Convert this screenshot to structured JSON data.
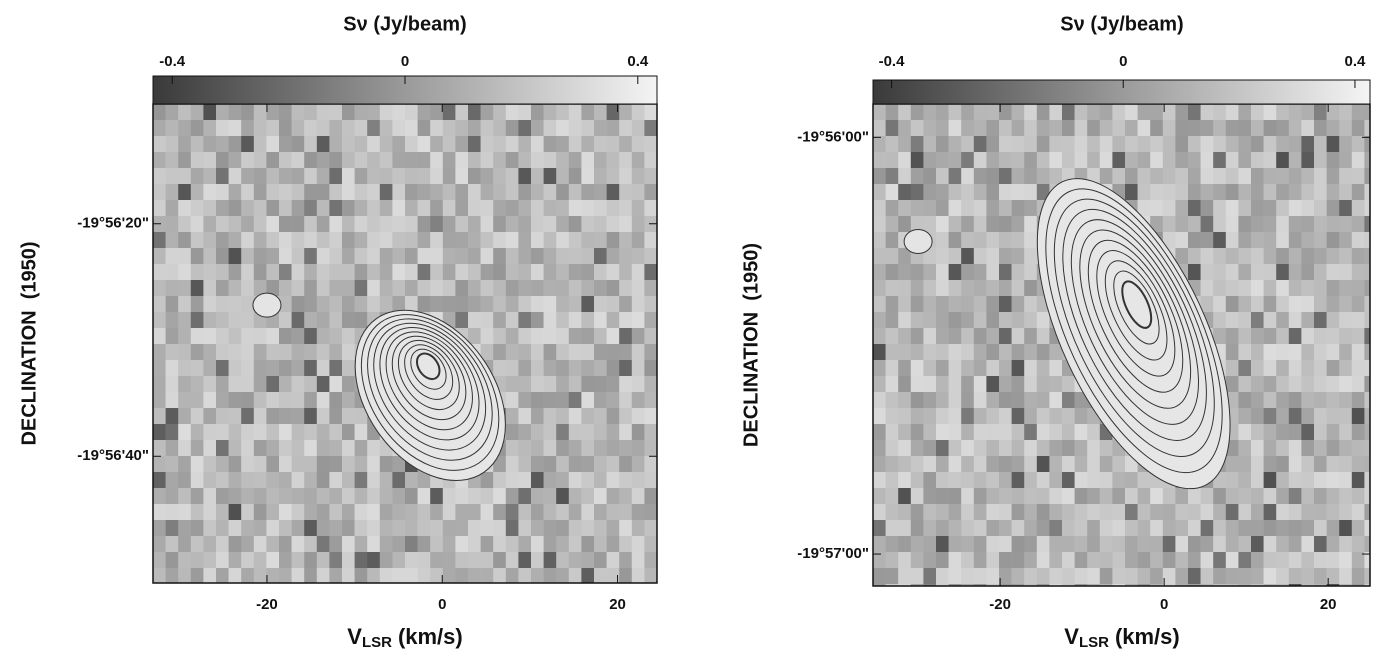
{
  "chart_data": [
    {
      "type": "image",
      "title": "Sν (Jy/beam)",
      "xlabel": {
        "main": "V",
        "sub": "LSR",
        "unit": "(km/s)"
      },
      "ylabel": "DECLINATION  (1950)",
      "xlim": [
        -33,
        24.5
      ],
      "xticks": [
        -20,
        0,
        20
      ],
      "ylim": [
        9.7,
        50.9
      ],
      "yticks": [
        {
          "value": 20,
          "label": "-19°56'20\""
        },
        {
          "value": 40,
          "label": "-19°56'40\""
        }
      ],
      "clim": [
        -0.433,
        0.433
      ],
      "cticks": [
        -0.4,
        0,
        0.4
      ]
    },
    {
      "type": "image",
      "title": "Sν (Jy/beam)",
      "xlabel": {
        "main": "V",
        "sub": "LSR",
        "unit": "(km/s)"
      },
      "ylabel": "DECLINATION  (1950)",
      "xlim": [
        -35.5,
        25.1
      ],
      "xticks": [
        -20,
        0,
        20
      ],
      "ylim": [
        -4.8,
        64.6
      ],
      "yticks": [
        {
          "value": 0,
          "label": "-19°56'00\""
        },
        {
          "value": 60,
          "label": "-19°57'00\""
        }
      ],
      "clim": [
        -0.432,
        0.426
      ],
      "cticks": [
        -0.4,
        0,
        0.4
      ]
    }
  ]
}
